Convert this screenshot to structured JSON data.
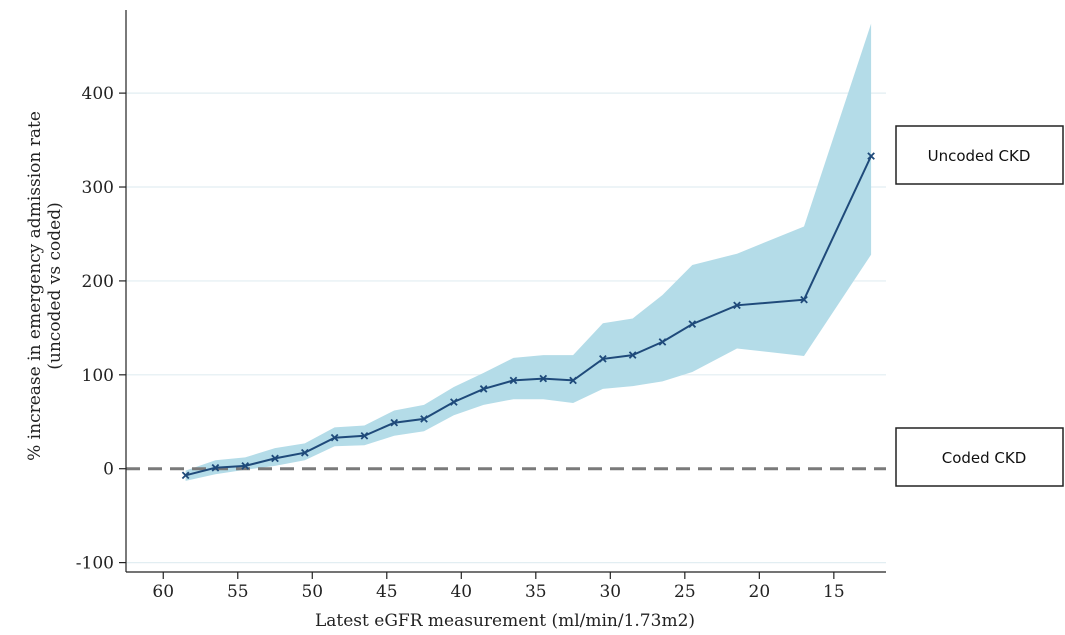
{
  "chart_data": {
    "type": "line",
    "title": "",
    "xlabel": "Latest eGFR measurement (ml/min/1.73m2)",
    "ylabel_lines": [
      "% increase in emergency admission rate",
      "(uncoded vs coded)"
    ],
    "x_reversed": true,
    "xlim": [
      62.5,
      11.5
    ],
    "ylim": [
      -110,
      480
    ],
    "xticks": [
      60,
      55,
      50,
      45,
      40,
      35,
      30,
      25,
      20,
      15
    ],
    "yticks": [
      -100,
      0,
      100,
      200,
      300,
      400
    ],
    "grid": true,
    "reference_line": {
      "y": 0,
      "style": "dashed"
    },
    "series": [
      {
        "x": [
          58.5,
          56.5,
          54.5,
          52.5,
          50.5,
          48.5,
          46.5,
          44.5,
          42.5,
          40.5,
          38.5,
          36.5,
          34.5,
          32.5,
          30.5,
          28.5,
          26.5,
          24.5,
          21.5,
          17,
          12.5
        ],
        "y": [
          -7,
          1,
          3,
          11,
          17,
          33,
          35,
          49,
          53,
          71,
          85,
          94,
          96,
          94,
          117,
          121,
          135,
          154,
          174,
          180,
          333
        ],
        "lower": [
          -13,
          -6,
          -1,
          3,
          9,
          24,
          25,
          35,
          40,
          57,
          68,
          74,
          74,
          70,
          85,
          88,
          93,
          103,
          128,
          120,
          228
        ],
        "upper": [
          -2,
          9,
          12,
          22,
          27,
          44,
          46,
          62,
          68,
          87,
          102,
          118,
          121,
          121,
          155,
          160,
          185,
          217,
          229,
          258,
          474
        ]
      }
    ],
    "colors": {
      "line": "#1f4a7a",
      "band": "#b4dce8",
      "grid": "#e2eef2",
      "refline": "#7a7a7a"
    },
    "annotations": [
      {
        "text": "Uncoded CKD"
      },
      {
        "text": "Coded CKD"
      }
    ]
  }
}
